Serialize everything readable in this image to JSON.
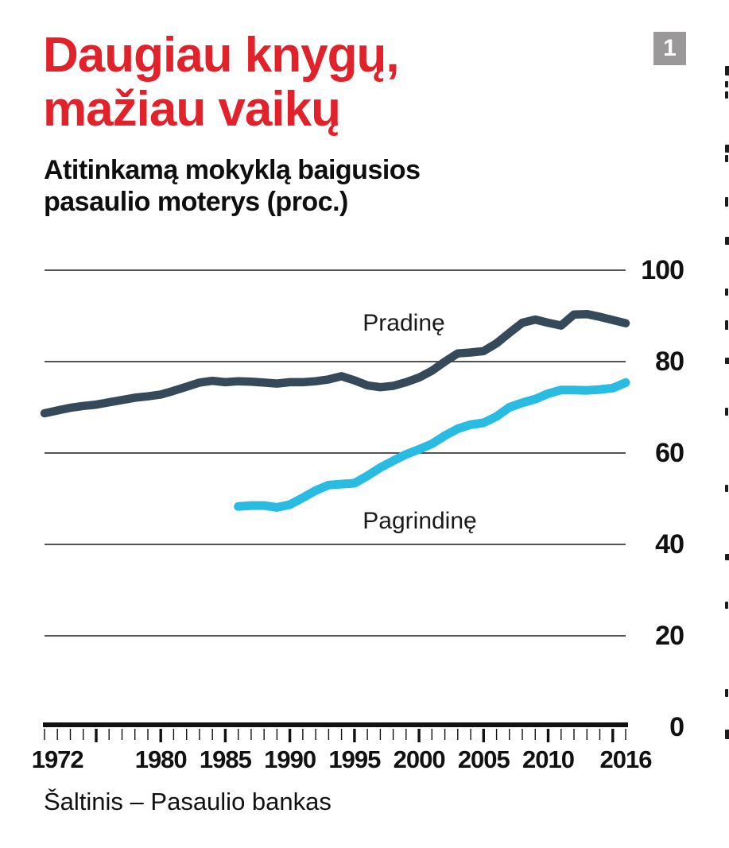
{
  "page": {
    "figure_number": "1",
    "title_line1": "Daugiau knygų,",
    "title_line2": "mažiau vaikų",
    "subtitle_line1": "Atitinkamą mokyklą baigusios",
    "subtitle_line2": "pasaulio moterys (proc.)",
    "source": "Šaltinis – Pasaulio bankas"
  },
  "colors": {
    "title_red": "#e2222a",
    "primary_line": "#35495a",
    "secondary_line": "#28bce2",
    "figure_box_gray": "#9a9899",
    "axis_black": "#111111",
    "gridline": "#1a1a1a"
  },
  "chart_data": {
    "type": "line",
    "title": "Daugiau knygų, mažiau vaikų",
    "subtitle": "Atitinkamą mokyklą baigusios pasaulio moterys (proc.)",
    "xlabel": "",
    "ylabel": "proc.",
    "ylim": [
      0,
      100
    ],
    "y_ticks": [
      100,
      80,
      60,
      40,
      20,
      0
    ],
    "x_range": [
      1971,
      2016
    ],
    "x_tick_labels": [
      "1972",
      "1980",
      "1985",
      "1990",
      "1995",
      "2000",
      "2005",
      "2010",
      "2016"
    ],
    "minor_ticks_every_year": true,
    "major_ticks_every": 5,
    "grid": "horizontal",
    "legend_position": "inline-labels",
    "series": [
      {
        "name": "Pradinę",
        "color": "#35495a",
        "start_year": 1971,
        "values": [
          68.7,
          69.3,
          69.9,
          70.3,
          70.6,
          71.1,
          71.6,
          72.1,
          72.4,
          72.8,
          73.6,
          74.5,
          75.4,
          75.8,
          75.5,
          75.7,
          75.6,
          75.4,
          75.2,
          75.5,
          75.5,
          75.7,
          76.1,
          76.8,
          75.9,
          74.8,
          74.4,
          74.7,
          75.5,
          76.5,
          78.0,
          80.0,
          81.8,
          82.0,
          82.3,
          84.0,
          86.3,
          88.5,
          89.2,
          88.5,
          87.9,
          90.3,
          90.4,
          89.8,
          89.1,
          88.4
        ]
      },
      {
        "name": "Pagrindinę",
        "color": "#28bce2",
        "start_year": 1986,
        "values": [
          48.3,
          48.5,
          48.5,
          48.1,
          48.7,
          50.2,
          51.8,
          53.0,
          53.2,
          53.4,
          55.0,
          56.8,
          58.3,
          59.7,
          60.8,
          62.0,
          63.8,
          65.3,
          66.2,
          66.6,
          68.0,
          70.0,
          71.0,
          71.8,
          73.0,
          73.8,
          73.8,
          73.7,
          73.9,
          74.2,
          75.4
        ]
      }
    ],
    "source": "Šaltinis – Pasaulio bankas"
  }
}
